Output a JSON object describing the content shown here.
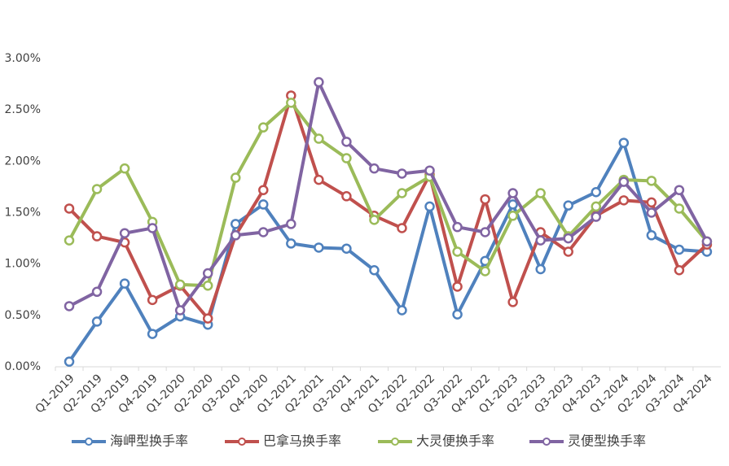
{
  "chart_data": {
    "type": "line",
    "categories": [
      "Q1-2019",
      "Q2-2019",
      "Q3-2019",
      "Q4-2019",
      "Q1-2020",
      "Q2-2020",
      "Q3-2020",
      "Q4-2020",
      "Q1-2021",
      "Q2-2021",
      "Q3-2021",
      "Q4-2021",
      "Q1-2022",
      "Q2-2022",
      "Q3-2022",
      "Q4-2022",
      "Q1-2023",
      "Q2-2023",
      "Q3-2023",
      "Q4-2023",
      "Q1-2024",
      "Q2-2024",
      "Q3-2024",
      "Q4-2024"
    ],
    "series": [
      {
        "name": "海岬型换手率",
        "color": "#4f81bd",
        "values": [
          0.05,
          0.44,
          0.81,
          0.32,
          0.49,
          0.41,
          1.39,
          1.58,
          1.2,
          1.16,
          1.15,
          0.94,
          0.55,
          1.56,
          0.51,
          1.03,
          1.58,
          0.95,
          1.57,
          1.7,
          2.18,
          1.28,
          1.14,
          1.12
        ]
      },
      {
        "name": "巴拿马换手率",
        "color": "#c0504d",
        "values": [
          1.54,
          1.27,
          1.21,
          0.65,
          0.79,
          0.47,
          1.28,
          1.72,
          2.64,
          1.82,
          1.66,
          1.47,
          1.35,
          1.87,
          0.78,
          1.63,
          0.63,
          1.31,
          1.12,
          1.47,
          1.62,
          1.6,
          0.94,
          1.19
        ]
      },
      {
        "name": "大灵便换手率",
        "color": "#9bbb59",
        "values": [
          1.23,
          1.73,
          1.93,
          1.41,
          0.8,
          0.79,
          1.84,
          2.33,
          2.57,
          2.22,
          2.03,
          1.43,
          1.69,
          1.85,
          1.12,
          0.93,
          1.47,
          1.69,
          1.27,
          1.56,
          1.82,
          1.81,
          1.54,
          1.22
        ]
      },
      {
        "name": "灵便型换手率",
        "color": "#8064a2",
        "values": [
          0.59,
          0.73,
          1.3,
          1.35,
          0.55,
          0.91,
          1.28,
          1.31,
          1.39,
          2.77,
          2.19,
          1.93,
          1.88,
          1.91,
          1.36,
          1.31,
          1.69,
          1.23,
          1.25,
          1.46,
          1.8,
          1.5,
          1.72,
          1.22
        ]
      }
    ],
    "ylim": [
      0,
      3
    ],
    "yticks": [
      {
        "value": 0,
        "label": "0.00%"
      },
      {
        "value": 0.5,
        "label": "0.50%"
      },
      {
        "value": 1,
        "label": "1.00%"
      },
      {
        "value": 1.5,
        "label": "1.50%"
      },
      {
        "value": 2,
        "label": "2.00%"
      },
      {
        "value": 2.5,
        "label": "2.50%"
      },
      {
        "value": 3,
        "label": "3.00%"
      }
    ],
    "grid": false,
    "legend": "bottom"
  }
}
